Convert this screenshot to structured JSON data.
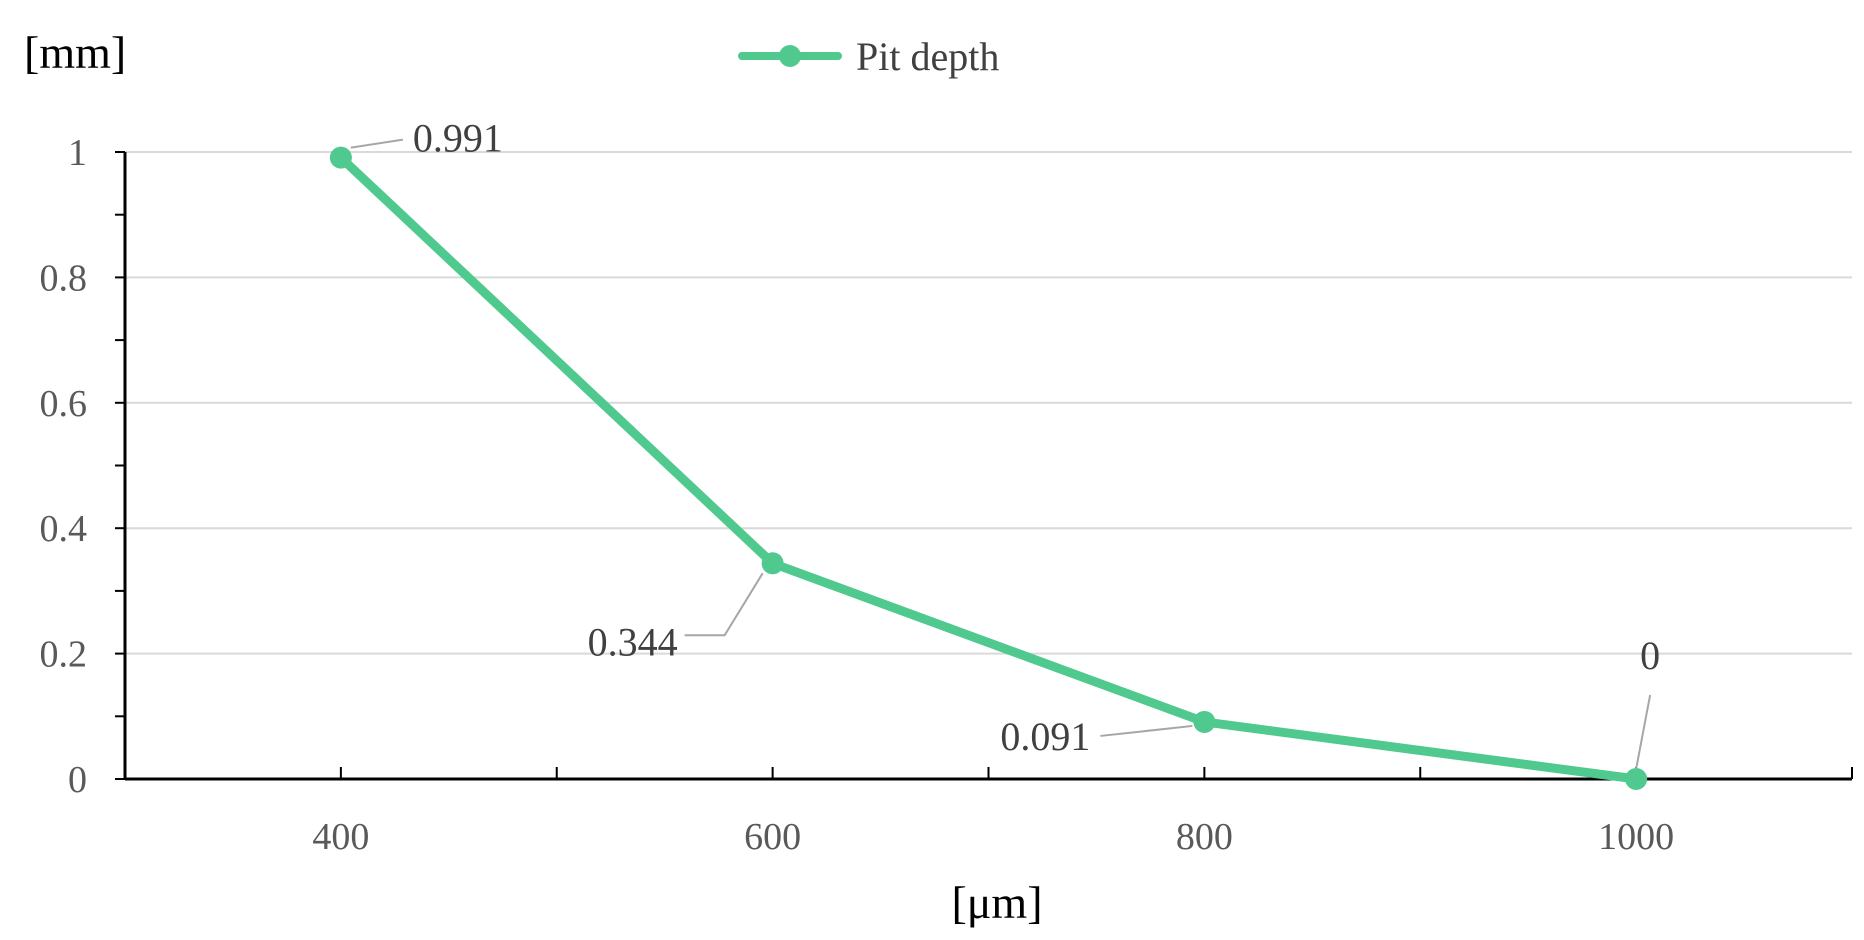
{
  "chart_data": {
    "type": "line",
    "ylabel": "[mm]",
    "xlabel": "[μm]",
    "x": [
      400,
      600,
      800,
      1000
    ],
    "series": [
      {
        "name": "Pit depth",
        "values": [
          0.991,
          0.344,
          0.091,
          0
        ],
        "color": "#4fc98d"
      }
    ],
    "data_labels": [
      "0.991",
      "0.344",
      "0.091",
      "0"
    ],
    "xlim": [
      300,
      1100
    ],
    "ylim": [
      0,
      1
    ],
    "x_ticks": [
      400,
      600,
      800,
      1000
    ],
    "x_tick_labels": [
      "400",
      "600",
      "800",
      "1000"
    ],
    "y_ticks": [
      0,
      0.2,
      0.4,
      0.6,
      0.8,
      1
    ],
    "y_tick_labels": [
      "0",
      "0.2",
      "0.4",
      "0.6",
      "0.8",
      "1"
    ],
    "grid": "horizontal",
    "legend_position": "top-center",
    "colors": {
      "gridline": "#d9d9d9",
      "axis": "#000000",
      "leader": "#a6a6a6"
    }
  }
}
